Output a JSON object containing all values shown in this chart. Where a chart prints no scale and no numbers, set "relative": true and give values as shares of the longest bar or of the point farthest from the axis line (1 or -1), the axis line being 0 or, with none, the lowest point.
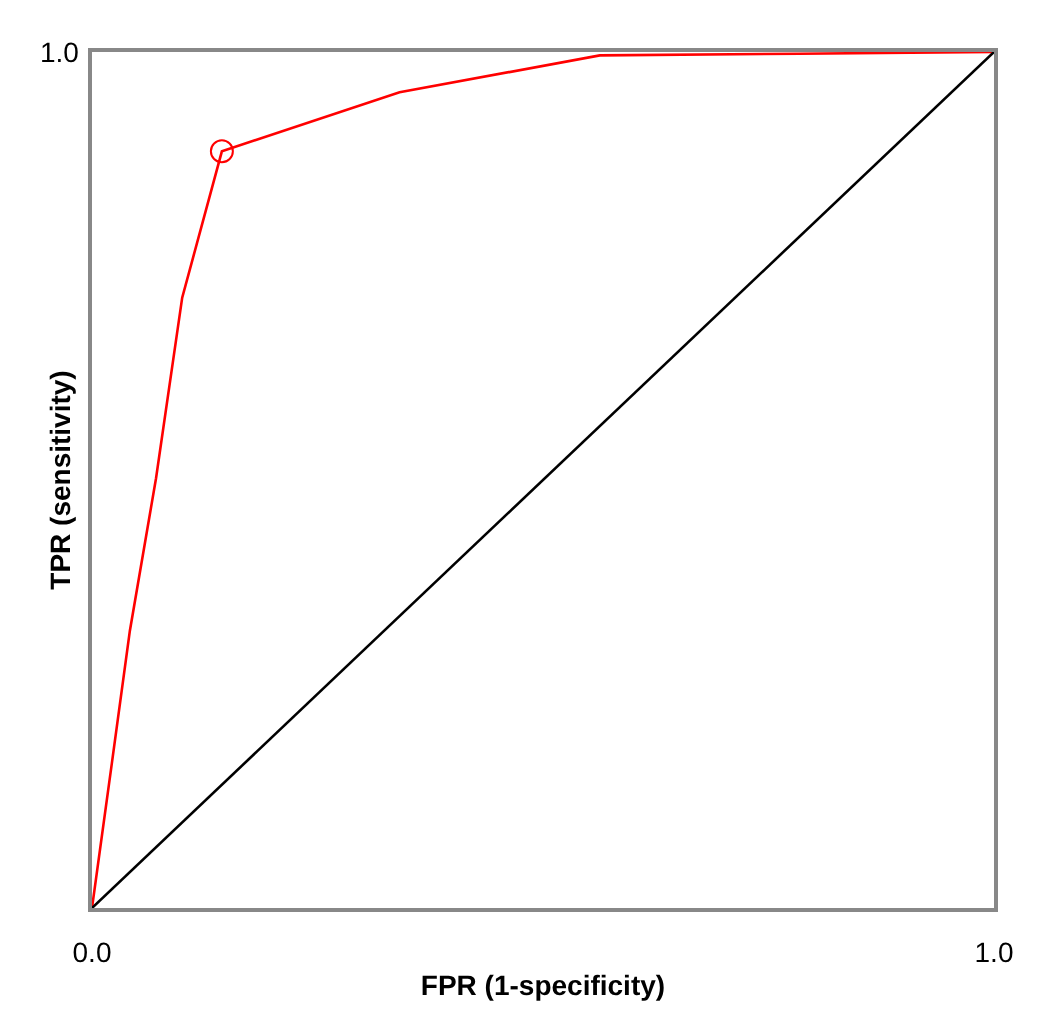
{
  "chart_data": {
    "type": "line",
    "xlabel": "FPR (1-specificity)",
    "ylabel": "TPR (sensitivity)",
    "xlim": [
      0,
      1
    ],
    "relative": true,
    "annotations": [
      "1.0"
    ],
    "xticks": [
      {
        "value": 0,
        "label": "0.0"
      },
      {
        "value": 1,
        "label": "1.0"
      }
    ],
    "marker": "none",
    "series": [
      {
        "color": "#ff0000",
        "x": [
          0,
          0.022,
          0.042,
          0.071,
          0.1,
          0.144,
          0.341,
          0.563,
          0.785,
          1
        ],
        "values": [
          0,
          0.169,
          0.324,
          0.502,
          0.713,
          0.884,
          0.953,
          0.996,
          0.998,
          1
        ]
      },
      {
        "type": "scatter",
        "marker": "circle",
        "color": "#ff0000",
        "x": [
          0.144
        ],
        "values": [
          0.884
        ]
      },
      {
        "color": "#000000",
        "x": [
          0,
          1
        ],
        "values": [
          0,
          1
        ]
      }
    ]
  }
}
